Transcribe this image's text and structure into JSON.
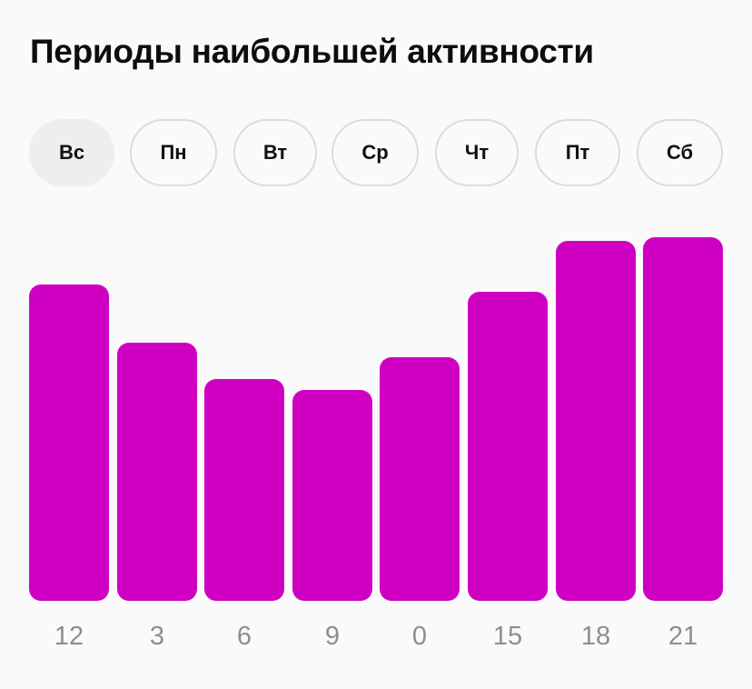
{
  "title": "Периоды наибольшей активности",
  "tabs": [
    {
      "label": "Вс",
      "active": true
    },
    {
      "label": "Пн",
      "active": false
    },
    {
      "label": "Вт",
      "active": false
    },
    {
      "label": "Ср",
      "active": false
    },
    {
      "label": "Чт",
      "active": false
    },
    {
      "label": "Пт",
      "active": false
    },
    {
      "label": "Сб",
      "active": false
    }
  ],
  "colors": {
    "bar": "#d000c3",
    "active_tab_bg": "#eeeef0",
    "tab_border": "#dcdcdc",
    "axis_label": "#8e8e8e",
    "background": "#fafafa"
  },
  "chart_data": {
    "type": "bar",
    "title": "Периоды наибольшей активности",
    "selected_day": "Вс",
    "categories": [
      "12",
      "3",
      "6",
      "9",
      "0",
      "15",
      "18",
      "21"
    ],
    "values": [
      87,
      71,
      61,
      58,
      67,
      85,
      99,
      100
    ],
    "xlabel": "",
    "ylabel": "",
    "ylim": [
      0,
      100
    ],
    "grid": false,
    "legend": "none",
    "note": "relative activity, no y-axis shown; values normalized to tallest bar = 100"
  }
}
